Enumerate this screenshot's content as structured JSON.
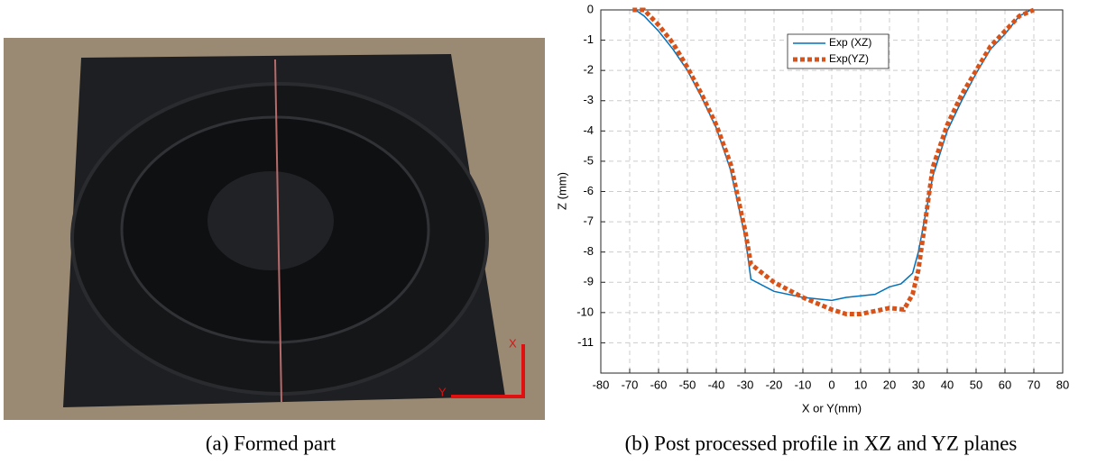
{
  "chart_data": {
    "type": "line",
    "xlabel": "X or Y(mm)",
    "ylabel": "Z (mm)",
    "xlim": [
      -80,
      80
    ],
    "xticks": [
      -80,
      -70,
      -60,
      -50,
      -40,
      -30,
      -20,
      -10,
      0,
      10,
      20,
      30,
      40,
      50,
      60,
      70,
      80
    ],
    "ylim": [
      -12,
      0
    ],
    "yticks": [
      0,
      -1,
      -2,
      -3,
      -4,
      -5,
      -6,
      -7,
      -8,
      -9,
      -10,
      -11
    ],
    "grid": true,
    "legend": "top",
    "series": [
      {
        "name": "Exp (XZ)",
        "color": "#0072bd",
        "style": "solid",
        "x": [
          -68,
          -65,
          -60,
          -55,
          -50,
          -45,
          -40,
          -35,
          -30,
          -28,
          -20,
          -10,
          0,
          5,
          15,
          20,
          24,
          28,
          30,
          35,
          40,
          45,
          50,
          55,
          60,
          65,
          69
        ],
        "values": [
          0,
          -0.2,
          -0.7,
          -1.3,
          -2.0,
          -2.9,
          -3.9,
          -5.3,
          -7.5,
          -8.9,
          -9.3,
          -9.5,
          -9.6,
          -9.5,
          -9.4,
          -9.15,
          -9.05,
          -8.7,
          -8.0,
          -5.5,
          -4.0,
          -3.0,
          -2.1,
          -1.3,
          -0.8,
          -0.2,
          0
        ]
      },
      {
        "name": "Exp(YZ)",
        "color": "#d95319",
        "style": "dotted",
        "x": [
          -69,
          -65,
          -60,
          -55,
          -50,
          -45,
          -40,
          -35,
          -30,
          -28,
          -20,
          -10,
          0,
          5,
          10,
          15,
          20,
          25,
          28,
          30,
          35,
          40,
          45,
          50,
          55,
          60,
          65,
          70
        ],
        "values": [
          0,
          0,
          -0.5,
          -1.1,
          -1.9,
          -2.8,
          -3.8,
          -5.1,
          -7.3,
          -8.4,
          -9.0,
          -9.5,
          -9.9,
          -10.05,
          -10.05,
          -9.95,
          -9.85,
          -9.9,
          -9.4,
          -8.6,
          -5.2,
          -3.8,
          -2.8,
          -2.0,
          -1.2,
          -0.7,
          -0.2,
          0
        ]
      }
    ]
  },
  "photo_labels": [
    "X",
    "Y"
  ],
  "captions": [
    "(a) Formed part",
    "(b) Post processed profile in XZ and YZ planes"
  ]
}
